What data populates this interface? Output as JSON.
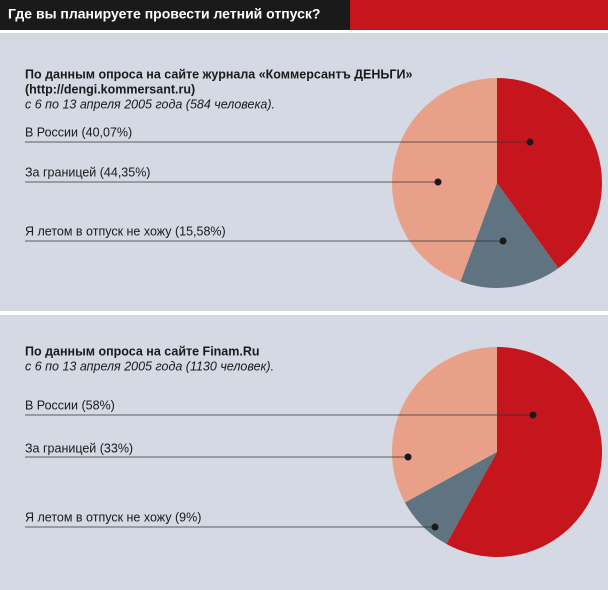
{
  "title": "Где вы планируете провести летний отпуск?",
  "chart_data": [
    {
      "type": "pie",
      "subtitle": [
        "По данным опроса на сайте журнала «Коммерсантъ ДЕНЬГИ»",
        "(http://dengi.kommersant.ru)"
      ],
      "note": "с 6 по 13 апреля 2005 года (584 человека).",
      "categories": [
        "В России (40,07%)",
        "За границей (44,35%)",
        "Я летом в отпуск не хожу (15,58%)"
      ],
      "values": [
        40.07,
        44.35,
        15.58
      ],
      "colors": [
        "#c4161c",
        "#e8a088",
        "#5f7380"
      ]
    },
    {
      "type": "pie",
      "subtitle": [
        "По данным опроса на сайте Finam.Ru"
      ],
      "note": "с 6 по 13 апреля 2005 года (1130 человек).",
      "categories": [
        "В России (58%)",
        "За границей (33%)",
        "Я летом в отпуск не хожу (9%)"
      ],
      "values": [
        58,
        33,
        9
      ],
      "colors": [
        "#c4161c",
        "#e8a088",
        "#5f7380"
      ]
    }
  ]
}
